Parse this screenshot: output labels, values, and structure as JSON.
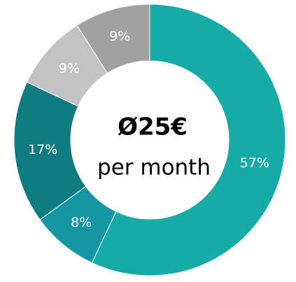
{
  "chart_data": {
    "type": "donut",
    "categories": [
      null,
      null,
      null,
      null,
      null
    ],
    "values": [
      57,
      8,
      17,
      9,
      9
    ],
    "value_labels": [
      "57%",
      "8%",
      "17%",
      "9%",
      "9%"
    ],
    "colors": [
      "#17aba8",
      "#1496a3",
      "#0f7d80",
      "#c3c3c3",
      "#a1a1a1"
    ],
    "annotations": [
      "Ø25€",
      "per month"
    ]
  }
}
